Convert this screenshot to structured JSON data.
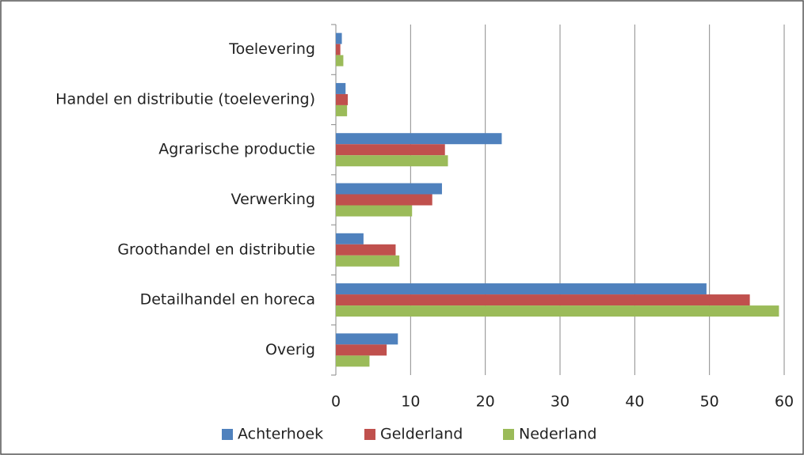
{
  "chart_data": {
    "type": "hbar",
    "categories": [
      "Toelevering",
      "Handel en distributie (toelevering)",
      "Agrarische productie",
      "Verwerking",
      "Groothandel en distributie",
      "Detailhandel en horeca",
      "Overig"
    ],
    "series": [
      {
        "name": "Achterhoek",
        "color": "#4f81bd",
        "values": [
          0.8,
          1.3,
          22.2,
          14.2,
          3.7,
          49.6,
          8.3
        ]
      },
      {
        "name": "Gelderland",
        "color": "#c0504d",
        "values": [
          0.6,
          1.6,
          14.6,
          12.9,
          8.0,
          55.4,
          6.8
        ]
      },
      {
        "name": "Nederland",
        "color": "#9bbb59",
        "values": [
          1.0,
          1.5,
          15.0,
          10.2,
          8.5,
          59.3,
          4.5
        ]
      }
    ],
    "xlim": [
      0,
      60
    ],
    "xticks": [
      0,
      10,
      20,
      30,
      40,
      50,
      60
    ],
    "grid": true,
    "legend": "bottom"
  }
}
